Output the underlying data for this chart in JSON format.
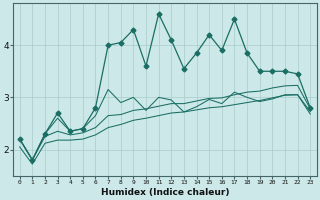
{
  "xlabel": "Humidex (Indice chaleur)",
  "bg_color": "#cce8e8",
  "grid_color": "#aacccc",
  "line_color": "#1a6e64",
  "x_values": [
    0,
    1,
    2,
    3,
    4,
    5,
    6,
    7,
    8,
    9,
    10,
    11,
    12,
    13,
    14,
    15,
    16,
    17,
    18,
    19,
    20,
    21,
    22,
    23
  ],
  "y_main": [
    2.2,
    1.8,
    2.3,
    2.7,
    2.35,
    2.4,
    2.8,
    4.0,
    4.05,
    4.3,
    3.6,
    4.6,
    4.1,
    3.55,
    3.85,
    4.2,
    3.9,
    4.5,
    3.85,
    3.5,
    3.5,
    3.5,
    3.45,
    2.8
  ],
  "y_mid": [
    2.2,
    1.8,
    2.3,
    2.6,
    2.35,
    2.4,
    2.65,
    3.15,
    2.9,
    3.0,
    2.75,
    3.0,
    2.95,
    2.72,
    2.82,
    2.96,
    2.88,
    3.1,
    3.0,
    2.92,
    2.97,
    3.05,
    3.05,
    2.73
  ],
  "y_upper": [
    2.2,
    1.8,
    2.25,
    2.35,
    2.28,
    2.32,
    2.42,
    2.65,
    2.67,
    2.75,
    2.78,
    2.83,
    2.88,
    2.88,
    2.93,
    2.98,
    2.99,
    3.05,
    3.1,
    3.12,
    3.18,
    3.22,
    3.23,
    2.78
  ],
  "y_lower": [
    2.05,
    1.72,
    2.12,
    2.18,
    2.18,
    2.2,
    2.28,
    2.42,
    2.48,
    2.56,
    2.6,
    2.65,
    2.7,
    2.72,
    2.76,
    2.8,
    2.82,
    2.86,
    2.9,
    2.94,
    2.99,
    3.04,
    3.05,
    2.68
  ],
  "ylim": [
    1.5,
    4.8
  ],
  "yticks": [
    2,
    3,
    4
  ],
  "xticks": [
    0,
    1,
    2,
    3,
    4,
    5,
    6,
    7,
    8,
    9,
    10,
    11,
    12,
    13,
    14,
    15,
    16,
    17,
    18,
    19,
    20,
    21,
    22,
    23
  ]
}
